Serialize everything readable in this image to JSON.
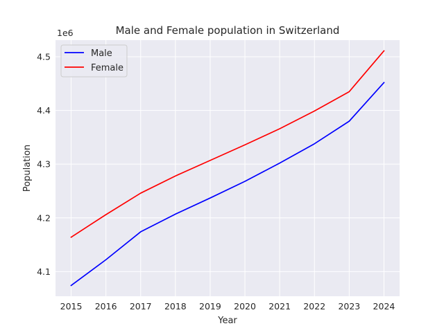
{
  "chart_data": {
    "type": "line",
    "title": "Male and Female population in Switzerland",
    "xlabel": "Year",
    "ylabel": "Population",
    "y_offset_label": "1e6",
    "x": [
      2015,
      2016,
      2017,
      2018,
      2019,
      2020,
      2021,
      2022,
      2023,
      2024
    ],
    "x_ticks": [
      "2015",
      "2016",
      "2017",
      "2018",
      "2019",
      "2020",
      "2021",
      "2022",
      "2023",
      "2024"
    ],
    "y_ticks": [
      "4.1",
      "4.2",
      "4.3",
      "4.4",
      "4.5"
    ],
    "y_tick_values": [
      4100000,
      4200000,
      4300000,
      4400000,
      4500000
    ],
    "xlim": [
      2014.55,
      2024.45
    ],
    "ylim": [
      4054000,
      4531000
    ],
    "grid": true,
    "legend_position": "top-left",
    "series": [
      {
        "name": "Male",
        "color": "#0000ff",
        "values": [
          4074000,
          4122000,
          4174000,
          4207000,
          4237000,
          4268000,
          4302000,
          4338000,
          4380000,
          4452000
        ]
      },
      {
        "name": "Female",
        "color": "#ff0000",
        "values": [
          4164000,
          4206000,
          4246000,
          4278000,
          4307000,
          4336000,
          4366000,
          4399000,
          4435000,
          4511000
        ]
      }
    ]
  }
}
